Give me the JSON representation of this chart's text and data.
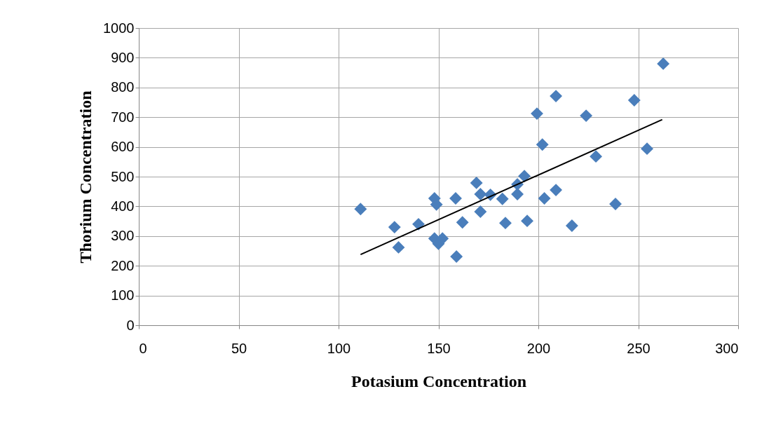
{
  "chart_data": {
    "type": "scatter",
    "xlabel": "Potasium Concentration",
    "ylabel": "Thorium Concentration",
    "xlim": [
      0,
      300
    ],
    "xticks": [
      0,
      50,
      100,
      150,
      200,
      250,
      300
    ],
    "ylim": [
      0,
      1000
    ],
    "yticks": [
      0,
      100,
      200,
      300,
      400,
      500,
      600,
      700,
      800,
      900,
      {
        "value": 1000,
        "label": "1000"
      }
    ],
    "grid": true,
    "marker": "diamond",
    "series": [
      {
        "color": "#4a7ebb",
        "x": [
          111,
          128,
          130,
          140,
          148,
          149,
          148,
          150,
          152,
          159,
          158.6,
          162,
          169,
          171,
          171,
          176,
          182,
          183.5,
          189.5,
          189.5,
          193,
          194.4,
          199.3,
          202,
          203,
          208.8,
          208.8,
          216.8,
          223.9,
          228.8,
          238.6,
          248,
          254.4,
          262.5
        ],
        "values": [
          391,
          330,
          262,
          340,
          427,
          406,
          292,
          274,
          292,
          231,
          427,
          346,
          479,
          382,
          441,
          439,
          425,
          344,
          441,
          474,
          502,
          351,
          712,
          608,
          427,
          771,
          455,
          335,
          705,
          568,
          408,
          757,
          594,
          880
        ]
      },
      {
        "type": "line",
        "marker": "none",
        "color": "#000000",
        "x": [
          111,
          262
        ],
        "values": [
          238,
          692
        ]
      }
    ]
  }
}
